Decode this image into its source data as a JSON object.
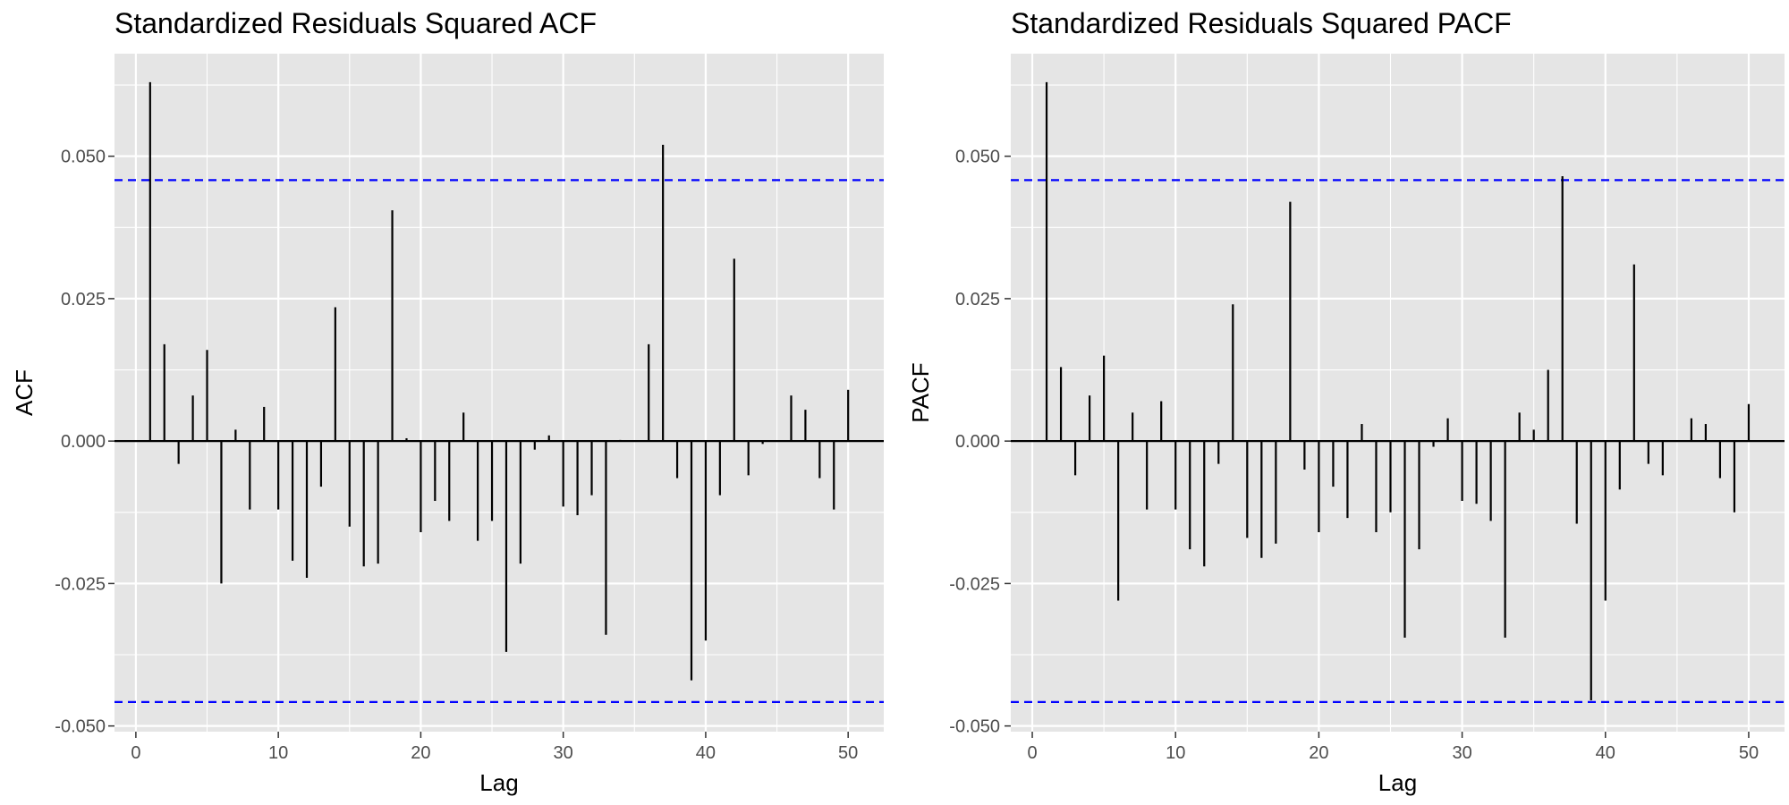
{
  "chart_data": [
    {
      "type": "bar",
      "title": "Standardized Residuals Squared ACF",
      "xlabel": "Lag",
      "ylabel": "ACF",
      "xlim": [
        -1.5,
        52.5
      ],
      "ylim": [
        -0.051,
        0.068
      ],
      "x_ticks": [
        0,
        10,
        20,
        30,
        40,
        50
      ],
      "y_ticks": [
        -0.05,
        -0.025,
        0.0,
        0.025,
        0.05
      ],
      "y_tick_labels": [
        "-0.050",
        "-0.025",
        "0.000",
        "0.025",
        "0.050"
      ],
      "confidence_bound": 0.0458,
      "grid": true,
      "colors": {
        "panel": "#e5e5e5",
        "grid": "#ffffff",
        "bars": "#000000",
        "bounds": "#0000ff"
      },
      "x": [
        1,
        2,
        3,
        4,
        5,
        6,
        7,
        8,
        9,
        10,
        11,
        12,
        13,
        14,
        15,
        16,
        17,
        18,
        19,
        20,
        21,
        22,
        23,
        24,
        25,
        26,
        27,
        28,
        29,
        30,
        31,
        32,
        33,
        34,
        35,
        36,
        37,
        38,
        39,
        40,
        41,
        42,
        43,
        44,
        45,
        46,
        47,
        48,
        49,
        50
      ],
      "values": [
        0.063,
        0.017,
        -0.004,
        0.008,
        0.016,
        -0.025,
        0.002,
        -0.012,
        0.006,
        -0.012,
        -0.021,
        -0.024,
        -0.008,
        0.0235,
        -0.015,
        -0.022,
        -0.0215,
        0.0405,
        0.0005,
        -0.016,
        -0.0105,
        -0.014,
        0.005,
        -0.0175,
        -0.014,
        -0.037,
        -0.0215,
        -0.0015,
        0.001,
        -0.0115,
        -0.013,
        -0.0095,
        -0.034,
        0.0002,
        0.0,
        0.017,
        0.052,
        -0.0065,
        -0.042,
        -0.035,
        -0.0095,
        0.032,
        -0.006,
        -0.0005,
        0.0,
        0.008,
        0.0055,
        -0.0065,
        -0.012,
        0.009
      ]
    },
    {
      "type": "bar",
      "title": "Standardized Residuals Squared PACF",
      "xlabel": "Lag",
      "ylabel": "PACF",
      "xlim": [
        -1.5,
        52.5
      ],
      "ylim": [
        -0.051,
        0.068
      ],
      "x_ticks": [
        0,
        10,
        20,
        30,
        40,
        50
      ],
      "y_ticks": [
        -0.05,
        -0.025,
        0.0,
        0.025,
        0.05
      ],
      "y_tick_labels": [
        "-0.050",
        "-0.025",
        "0.000",
        "0.025",
        "0.050"
      ],
      "confidence_bound": 0.0458,
      "grid": true,
      "colors": {
        "panel": "#e5e5e5",
        "grid": "#ffffff",
        "bars": "#000000",
        "bounds": "#0000ff"
      },
      "x": [
        1,
        2,
        3,
        4,
        5,
        6,
        7,
        8,
        9,
        10,
        11,
        12,
        13,
        14,
        15,
        16,
        17,
        18,
        19,
        20,
        21,
        22,
        23,
        24,
        25,
        26,
        27,
        28,
        29,
        30,
        31,
        32,
        33,
        34,
        35,
        36,
        37,
        38,
        39,
        40,
        41,
        42,
        43,
        44,
        45,
        46,
        47,
        48,
        49,
        50
      ],
      "values": [
        0.063,
        0.013,
        -0.006,
        0.008,
        0.015,
        -0.028,
        0.005,
        -0.012,
        0.007,
        -0.012,
        -0.019,
        -0.022,
        -0.004,
        0.024,
        -0.017,
        -0.0205,
        -0.018,
        0.042,
        -0.005,
        -0.016,
        -0.008,
        -0.0135,
        0.003,
        -0.016,
        -0.0125,
        -0.0345,
        -0.019,
        -0.001,
        0.004,
        -0.0105,
        -0.011,
        -0.014,
        -0.0345,
        0.005,
        0.002,
        0.0125,
        0.0465,
        -0.0145,
        -0.0455,
        -0.028,
        -0.0085,
        0.031,
        -0.004,
        -0.006,
        0.0,
        0.004,
        0.003,
        -0.0065,
        -0.0125,
        0.0065
      ]
    }
  ]
}
